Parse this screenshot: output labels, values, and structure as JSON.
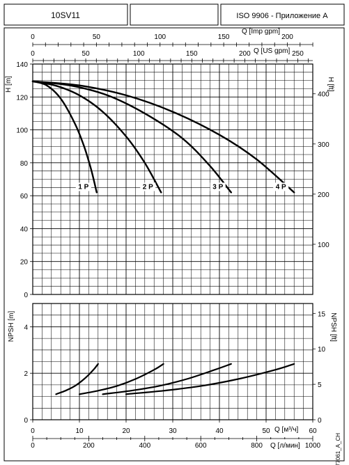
{
  "header": {
    "model": "10SV11",
    "standard": "ISO 9906 - Приложение A"
  },
  "drawing_code": "77061_A_CH",
  "chart_data": [
    {
      "type": "line",
      "name": "H-Q",
      "ylabel": "H [m]",
      "ylim": [
        0,
        140
      ],
      "yticks": [
        0,
        20,
        40,
        60,
        80,
        100,
        120,
        140
      ],
      "ylabel_right": "H [ft]",
      "yticks_right": [
        100,
        200,
        300,
        400
      ],
      "xlabel_top1": "Q [Imp gpm]",
      "xticks_top1": [
        0,
        50,
        100,
        150,
        200
      ],
      "xlabel_top2": "Q [US gpm]",
      "xticks_top2": [
        0,
        50,
        100,
        150,
        200,
        250
      ],
      "xlim": [
        0,
        60
      ],
      "grid": true,
      "series": [
        {
          "name": "1 P",
          "x": [
            0,
            3,
            6,
            9,
            11,
            12.5,
            13.7
          ],
          "y": [
            129.5,
            127,
            119,
            104,
            90,
            76,
            62
          ]
        },
        {
          "name": "2 P",
          "x": [
            0,
            5,
            10,
            15,
            20,
            24,
            27.5
          ],
          "y": [
            129.5,
            126.8,
            121,
            111,
            96,
            80,
            62
          ]
        },
        {
          "name": "3 P",
          "x": [
            0,
            8,
            16,
            24,
            32,
            38,
            42.5
          ],
          "y": [
            129.5,
            127,
            121,
            110,
            95,
            78,
            62
          ]
        },
        {
          "name": "4 P",
          "x": [
            0,
            10,
            20,
            30,
            40,
            48,
            56
          ],
          "y": [
            129.5,
            127,
            121,
            111,
            97,
            82,
            62
          ]
        }
      ]
    },
    {
      "type": "line",
      "name": "NPSH-Q",
      "ylabel": "NPSH [m]",
      "ylim": [
        0,
        5
      ],
      "yticks": [
        0,
        2,
        4
      ],
      "ylabel_right": "NPSH [ft]",
      "yticks_right": [
        0,
        5,
        10,
        15
      ],
      "xlabel": "Q [м³/ч]",
      "xticks": [
        0,
        10,
        20,
        30,
        40,
        50,
        60
      ],
      "xlabel_bottom2": "Q [л/мин]",
      "xticks_bottom2": [
        0,
        200,
        400,
        600,
        800,
        1000
      ],
      "xlim": [
        0,
        60
      ],
      "grid": true,
      "series": [
        {
          "name": "1 P",
          "x": [
            5,
            7,
            9,
            11,
            13,
            14
          ],
          "y": [
            1.1,
            1.25,
            1.45,
            1.75,
            2.15,
            2.4
          ]
        },
        {
          "name": "2 P",
          "x": [
            10,
            14,
            18,
            22,
            26,
            28
          ],
          "y": [
            1.1,
            1.25,
            1.45,
            1.75,
            2.15,
            2.4
          ]
        },
        {
          "name": "3 P",
          "x": [
            15,
            21,
            27,
            33,
            39,
            42.5
          ],
          "y": [
            1.1,
            1.25,
            1.45,
            1.75,
            2.15,
            2.4
          ]
        },
        {
          "name": "4 P",
          "x": [
            20,
            28,
            36,
            44,
            52,
            56
          ],
          "y": [
            1.1,
            1.25,
            1.45,
            1.75,
            2.15,
            2.4
          ]
        }
      ]
    }
  ]
}
